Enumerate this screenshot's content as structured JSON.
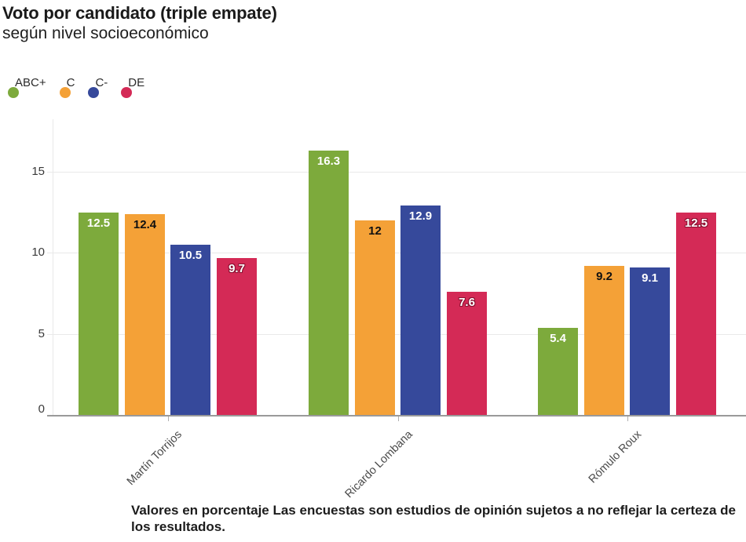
{
  "header": {
    "title": "Voto por candidato (triple empate)",
    "subtitle": "según nivel socioeconómico"
  },
  "chart_data": {
    "type": "bar",
    "title": "Voto por candidato (triple empate)",
    "subtitle": "según nivel socioeconómico",
    "categories": [
      "Martín Torrijos",
      "Ricardo Lombana",
      "Rómulo Roux"
    ],
    "series": [
      {
        "name": "ABC+",
        "color": "#7daa3c",
        "label_color": "#ffffff",
        "label_halo": null,
        "values": [
          12.5,
          16.3,
          5.4
        ]
      },
      {
        "name": "C",
        "color": "#f4a137",
        "label_color": "#111111",
        "label_halo": null,
        "values": [
          12.4,
          12.0,
          9.2
        ]
      },
      {
        "name": "C-",
        "color": "#36499b",
        "label_color": "#ffffff",
        "label_halo": null,
        "values": [
          10.5,
          12.9,
          9.1
        ]
      },
      {
        "name": "DE",
        "color": "#d42a56",
        "label_color": "#ffffff",
        "label_halo": "#8c1031",
        "values": [
          9.7,
          7.6,
          12.5
        ]
      }
    ],
    "y_ticks": [
      0,
      5,
      10,
      15
    ],
    "ylim": [
      0,
      18.2
    ],
    "grid": true,
    "legend_position": "top-left",
    "xlabel": "",
    "ylabel": ""
  },
  "footer": {
    "note": "Valores en porcentaje Las encuestas son estudios de opinión sujetos a no reflejar la certeza de los resultados."
  }
}
